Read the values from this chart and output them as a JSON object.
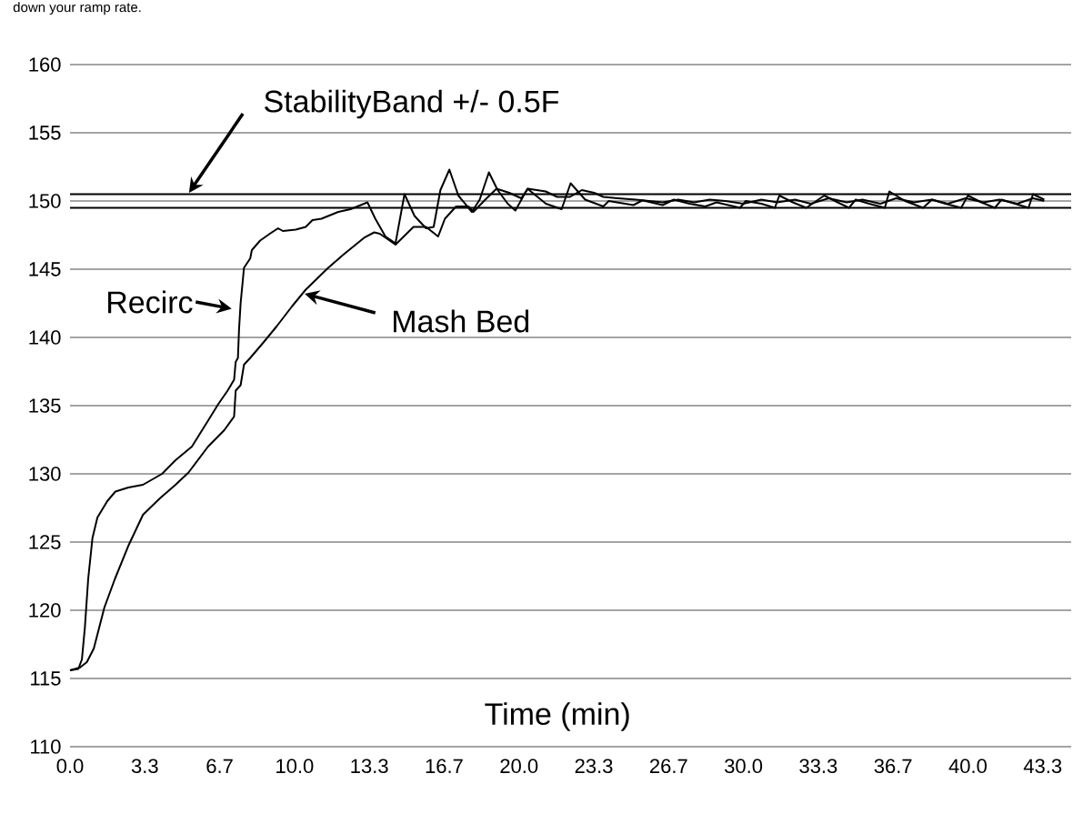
{
  "chart_data": {
    "type": "line",
    "xlabel": "Time (min)",
    "annotations": [
      "down your ramp rate.",
      "StabilityBand +/- 0.5F"
    ],
    "xlim": [
      0,
      44.6
    ],
    "ylim": [
      110,
      160
    ],
    "xticks": [
      {
        "value": 0,
        "label": "0.0"
      },
      {
        "value": 3.333,
        "label": "3.3"
      },
      {
        "value": 6.667,
        "label": "6.7"
      },
      {
        "value": 10,
        "label": "10.0"
      },
      {
        "value": 13.333,
        "label": "13.3"
      },
      {
        "value": 16.667,
        "label": "16.7"
      },
      {
        "value": 20,
        "label": "20.0"
      },
      {
        "value": 23.333,
        "label": "23.3"
      },
      {
        "value": 26.667,
        "label": "26.7"
      },
      {
        "value": 30,
        "label": "30.0"
      },
      {
        "value": 33.333,
        "label": "33.3"
      },
      {
        "value": 36.667,
        "label": "36.7"
      },
      {
        "value": 40,
        "label": "40.0"
      },
      {
        "value": 43.333,
        "label": "43.3"
      }
    ],
    "yticks": [
      110,
      115,
      120,
      125,
      130,
      135,
      140,
      145,
      150,
      155,
      160
    ],
    "grid": "y",
    "ref_lines": [
      {
        "axis": "y",
        "value": 150.5,
        "color": "#000000"
      },
      {
        "axis": "y",
        "value": 149.5,
        "color": "#000000"
      }
    ],
    "series": [
      {
        "name": "Recirc",
        "color": "#000000",
        "x": [
          0,
          0.37,
          0.53,
          0.66,
          0.81,
          1.0,
          1.22,
          1.66,
          2.02,
          2.6,
          3.25,
          4.1,
          4.7,
          5.43,
          6.15,
          6.6,
          7.02,
          7.31,
          7.38,
          7.48,
          7.53,
          7.6,
          7.75,
          8.03,
          8.1,
          8.47,
          8.9,
          9.27,
          9.48,
          10.05,
          10.5,
          10.8,
          11.2,
          11.95,
          12.5,
          13.1,
          13.25,
          13.6,
          14.05,
          14.5,
          14.9,
          15.35,
          15.86,
          16.2,
          16.5,
          16.9,
          17.3,
          17.9,
          18.25,
          18.66,
          19.05,
          19.5,
          19.84,
          20.38,
          21.2,
          21.9,
          22.3,
          22.95,
          23.76,
          24.0,
          25.1,
          25.5,
          26.4,
          26.9,
          27.6,
          28.3,
          28.8,
          29.85,
          30.1,
          30.8,
          31.4,
          31.6,
          32.2,
          32.8,
          33.6,
          34.2,
          34.7,
          35.0,
          35.6,
          36.3,
          36.5,
          37.2,
          38.0,
          38.4,
          39.0,
          39.7,
          40.0,
          40.6,
          41.2,
          41.5,
          42.1,
          42.7,
          42.9,
          43.4
        ],
        "values": [
          115.6,
          115.7,
          116.4,
          118.7,
          122.3,
          125.3,
          126.8,
          128.0,
          128.7,
          129.0,
          129.2,
          130.0,
          131.0,
          132.0,
          133.9,
          135.1,
          136.1,
          136.9,
          138.2,
          138.5,
          140.6,
          142.5,
          145.1,
          145.8,
          146.4,
          147.1,
          147.6,
          148.0,
          147.8,
          147.9,
          148.1,
          148.6,
          148.7,
          149.2,
          149.4,
          149.8,
          149.9,
          148.7,
          147.4,
          146.9,
          150.5,
          148.9,
          148.0,
          148.1,
          150.8,
          152.3,
          150.4,
          149.2,
          150.1,
          152.1,
          150.8,
          149.8,
          149.3,
          150.9,
          149.8,
          149.4,
          151.3,
          150.1,
          149.6,
          150.0,
          149.7,
          150.05,
          149.7,
          150.1,
          149.8,
          149.6,
          149.9,
          149.5,
          150.0,
          149.8,
          149.5,
          150.4,
          149.9,
          149.5,
          150.4,
          149.9,
          149.5,
          150.1,
          149.8,
          149.5,
          150.7,
          150.0,
          149.5,
          150.1,
          149.8,
          149.5,
          150.4,
          149.9,
          149.5,
          150.1,
          149.8,
          149.5,
          150.5,
          150.1
        ]
      },
      {
        "name": "Mash Bed",
        "color": "#000000",
        "x": [
          0,
          0.44,
          0.75,
          1.06,
          1.53,
          2.0,
          2.62,
          3.25,
          4.0,
          4.7,
          5.28,
          6.15,
          6.87,
          7.31,
          7.38,
          7.6,
          7.75,
          8.03,
          8.6,
          9.2,
          9.9,
          10.5,
          11.5,
          12.2,
          13.1,
          13.55,
          13.8,
          14.5,
          15.3,
          15.86,
          16.4,
          16.7,
          17.2,
          17.75,
          17.97,
          18.5,
          19.0,
          19.57,
          20.1,
          20.4,
          20.79,
          21.19,
          21.7,
          22.27,
          22.8,
          23.35,
          23.76,
          24.4,
          25.2,
          25.8,
          26.4,
          27.1,
          27.8,
          28.5,
          29.2,
          30.0,
          30.8,
          31.5,
          32.3,
          33.0,
          33.8,
          34.6,
          35.3,
          36.1,
          36.8,
          37.6,
          38.4,
          39.1,
          39.9,
          40.7,
          41.4,
          42.2,
          42.9,
          43.4
        ],
        "values": [
          115.6,
          115.8,
          116.2,
          117.2,
          120.2,
          122.3,
          124.8,
          127.0,
          128.2,
          129.2,
          130.1,
          132.0,
          133.2,
          134.2,
          136.1,
          136.5,
          138.0,
          138.5,
          139.6,
          140.8,
          142.3,
          143.5,
          145.1,
          146.1,
          147.3,
          147.7,
          147.6,
          146.8,
          148.1,
          148.1,
          147.4,
          148.7,
          149.6,
          149.6,
          149.2,
          150.1,
          150.9,
          150.6,
          150.2,
          150.9,
          150.8,
          150.7,
          150.3,
          150.3,
          150.8,
          150.6,
          150.3,
          150.2,
          150.1,
          150.0,
          149.9,
          150.1,
          149.9,
          150.1,
          150.0,
          149.8,
          150.1,
          149.9,
          150.1,
          149.8,
          150.2,
          149.9,
          150.1,
          149.8,
          150.2,
          149.9,
          150.1,
          149.8,
          150.2,
          149.9,
          150.1,
          149.8,
          150.2,
          150.0
        ]
      }
    ]
  }
}
